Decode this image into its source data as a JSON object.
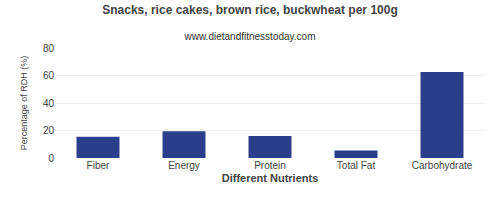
{
  "chart_data": {
    "type": "bar",
    "title": "Snacks, rice cakes, brown rice, buckwheat per 100g",
    "subtitle": "www.dietandfitnesstoday.com",
    "xlabel": "Different Nutrients",
    "ylabel": "Percentage of RDH (%)",
    "categories": [
      "Fiber",
      "Energy",
      "Protein",
      "Total Fat",
      "Carbohydrate"
    ],
    "values": [
      15.5,
      19.5,
      16.0,
      5.5,
      62.5
    ],
    "color": "#2b3e8c",
    "ylim": [
      0,
      80
    ],
    "yticks": [
      0,
      20,
      40,
      60,
      80
    ],
    "grid": true
  }
}
